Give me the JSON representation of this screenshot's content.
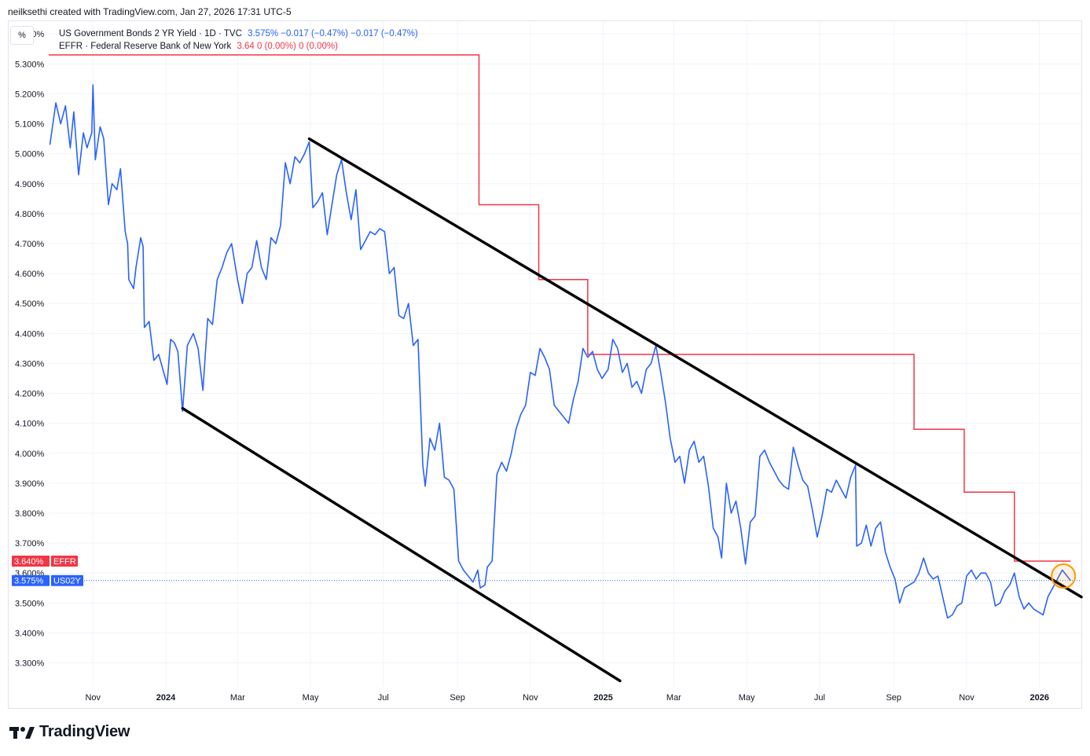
{
  "header": {
    "attribution": "neilksethi created with TradingView.com, Jan 27, 2026 17:31 UTC-5"
  },
  "toolbar": {
    "scale_button": "%"
  },
  "legend": {
    "series1_name": "US Government Bonds 2 YR Yield · 1D · TVC",
    "series1_values": "3.575%  −0.017 (−0.47%)  −0.017 (−0.47%)",
    "series2_name": "EFFR · Federal Reserve Bank of New York",
    "series2_values": "3.64  0 (0.00%)  0 (0.00%)"
  },
  "footer": {
    "brand": "TradingView"
  },
  "colors": {
    "us02y": "#2962ff",
    "effr": "#f23645",
    "trendline": "#000000",
    "highlight": "#ff9800"
  },
  "chart_data": {
    "type": "line",
    "y_unit": "%",
    "ylim": [
      3.22,
      5.44
    ],
    "y_ticks": [
      5.4,
      5.3,
      5.2,
      5.1,
      5.0,
      4.9,
      4.8,
      4.7,
      4.6,
      4.5,
      4.4,
      4.3,
      4.2,
      4.1,
      4.0,
      3.9,
      3.8,
      3.7,
      3.6,
      3.5,
      3.4,
      3.3
    ],
    "y_tick_labels": [
      "5.400%",
      "5.300%",
      "5.200%",
      "5.100%",
      "5.000%",
      "4.900%",
      "4.800%",
      "4.700%",
      "4.600%",
      "4.500%",
      "4.400%",
      "4.300%",
      "4.200%",
      "4.100%",
      "4.000%",
      "3.900%",
      "3.800%",
      "3.700%",
      "3.600%",
      "3.500%",
      "3.400%",
      "3.300%"
    ],
    "xlim": [
      "2023-09-25",
      "2026-02-05"
    ],
    "x_ticks": [
      {
        "date": "2023-11-01",
        "label": "Nov",
        "bold": false
      },
      {
        "date": "2024-01-01",
        "label": "2024",
        "bold": true
      },
      {
        "date": "2024-03-01",
        "label": "Mar",
        "bold": false
      },
      {
        "date": "2024-05-01",
        "label": "May",
        "bold": false
      },
      {
        "date": "2024-07-01",
        "label": "Jul",
        "bold": false
      },
      {
        "date": "2024-09-01",
        "label": "Sep",
        "bold": false
      },
      {
        "date": "2024-11-01",
        "label": "Nov",
        "bold": false
      },
      {
        "date": "2025-01-01",
        "label": "2025",
        "bold": true
      },
      {
        "date": "2025-03-01",
        "label": "Mar",
        "bold": false
      },
      {
        "date": "2025-05-01",
        "label": "May",
        "bold": false
      },
      {
        "date": "2025-07-01",
        "label": "Jul",
        "bold": false
      },
      {
        "date": "2025-09-01",
        "label": "Sep",
        "bold": false
      },
      {
        "date": "2025-11-01",
        "label": "Nov",
        "bold": false
      },
      {
        "date": "2026-01-01",
        "label": "2026",
        "bold": true
      }
    ],
    "series": [
      {
        "name": "US02Y",
        "points": [
          [
            "2023-09-26",
            5.03
          ],
          [
            "2023-10-01",
            5.17
          ],
          [
            "2023-10-05",
            5.1
          ],
          [
            "2023-10-09",
            5.16
          ],
          [
            "2023-10-13",
            5.02
          ],
          [
            "2023-10-16",
            5.14
          ],
          [
            "2023-10-20",
            4.93
          ],
          [
            "2023-10-24",
            5.07
          ],
          [
            "2023-10-27",
            5.02
          ],
          [
            "2023-10-31",
            5.07
          ],
          [
            "2023-11-01",
            5.23
          ],
          [
            "2023-11-03",
            4.98
          ],
          [
            "2023-11-07",
            5.09
          ],
          [
            "2023-11-10",
            5.05
          ],
          [
            "2023-11-14",
            4.83
          ],
          [
            "2023-11-17",
            4.9
          ],
          [
            "2023-11-21",
            4.88
          ],
          [
            "2023-11-24",
            4.95
          ],
          [
            "2023-11-28",
            4.74
          ],
          [
            "2023-11-30",
            4.7
          ],
          [
            "2023-12-01",
            4.58
          ],
          [
            "2023-12-05",
            4.55
          ],
          [
            "2023-12-07",
            4.62
          ],
          [
            "2023-12-11",
            4.72
          ],
          [
            "2023-12-13",
            4.69
          ],
          [
            "2023-12-14",
            4.42
          ],
          [
            "2023-12-18",
            4.44
          ],
          [
            "2023-12-22",
            4.31
          ],
          [
            "2023-12-26",
            4.33
          ],
          [
            "2024-01-02",
            4.23
          ],
          [
            "2024-01-05",
            4.38
          ],
          [
            "2024-01-08",
            4.37
          ],
          [
            "2024-01-11",
            4.34
          ],
          [
            "2024-01-15",
            4.14
          ],
          [
            "2024-01-19",
            4.36
          ],
          [
            "2024-01-24",
            4.4
          ],
          [
            "2024-01-28",
            4.35
          ],
          [
            "2024-02-01",
            4.21
          ],
          [
            "2024-02-05",
            4.45
          ],
          [
            "2024-02-09",
            4.43
          ],
          [
            "2024-02-13",
            4.58
          ],
          [
            "2024-02-17",
            4.62
          ],
          [
            "2024-02-21",
            4.67
          ],
          [
            "2024-02-25",
            4.7
          ],
          [
            "2024-03-01",
            4.58
          ],
          [
            "2024-03-05",
            4.5
          ],
          [
            "2024-03-09",
            4.6
          ],
          [
            "2024-03-13",
            4.62
          ],
          [
            "2024-03-17",
            4.71
          ],
          [
            "2024-03-21",
            4.62
          ],
          [
            "2024-03-25",
            4.58
          ],
          [
            "2024-03-29",
            4.72
          ],
          [
            "2024-04-02",
            4.7
          ],
          [
            "2024-04-06",
            4.76
          ],
          [
            "2024-04-10",
            4.97
          ],
          [
            "2024-04-14",
            4.9
          ],
          [
            "2024-04-18",
            4.99
          ],
          [
            "2024-04-22",
            4.97
          ],
          [
            "2024-04-26",
            5.0
          ],
          [
            "2024-04-30",
            5.04
          ],
          [
            "2024-05-03",
            4.82
          ],
          [
            "2024-05-07",
            4.84
          ],
          [
            "2024-05-11",
            4.87
          ],
          [
            "2024-05-15",
            4.73
          ],
          [
            "2024-05-19",
            4.83
          ],
          [
            "2024-05-23",
            4.93
          ],
          [
            "2024-05-27",
            4.98
          ],
          [
            "2024-05-31",
            4.87
          ],
          [
            "2024-06-04",
            4.78
          ],
          [
            "2024-06-08",
            4.88
          ],
          [
            "2024-06-12",
            4.68
          ],
          [
            "2024-06-16",
            4.71
          ],
          [
            "2024-06-20",
            4.74
          ],
          [
            "2024-06-24",
            4.73
          ],
          [
            "2024-06-28",
            4.75
          ],
          [
            "2024-07-02",
            4.74
          ],
          [
            "2024-07-06",
            4.6
          ],
          [
            "2024-07-10",
            4.62
          ],
          [
            "2024-07-14",
            4.46
          ],
          [
            "2024-07-18",
            4.45
          ],
          [
            "2024-07-22",
            4.5
          ],
          [
            "2024-07-26",
            4.36
          ],
          [
            "2024-07-30",
            4.38
          ],
          [
            "2024-08-03",
            3.96
          ],
          [
            "2024-08-05",
            3.89
          ],
          [
            "2024-08-09",
            4.05
          ],
          [
            "2024-08-13",
            4.01
          ],
          [
            "2024-08-17",
            4.1
          ],
          [
            "2024-08-21",
            3.92
          ],
          [
            "2024-08-25",
            3.91
          ],
          [
            "2024-08-29",
            3.88
          ],
          [
            "2024-09-02",
            3.64
          ],
          [
            "2024-09-06",
            3.61
          ],
          [
            "2024-09-10",
            3.59
          ],
          [
            "2024-09-14",
            3.57
          ],
          [
            "2024-09-18",
            3.61
          ],
          [
            "2024-09-20",
            3.55
          ],
          [
            "2024-09-24",
            3.56
          ],
          [
            "2024-09-26",
            3.62
          ],
          [
            "2024-09-30",
            3.64
          ],
          [
            "2024-10-04",
            3.93
          ],
          [
            "2024-10-08",
            3.97
          ],
          [
            "2024-10-12",
            3.94
          ],
          [
            "2024-10-16",
            4.0
          ],
          [
            "2024-10-20",
            4.08
          ],
          [
            "2024-10-24",
            4.13
          ],
          [
            "2024-10-28",
            4.16
          ],
          [
            "2024-11-01",
            4.27
          ],
          [
            "2024-11-05",
            4.26
          ],
          [
            "2024-11-09",
            4.35
          ],
          [
            "2024-11-13",
            4.32
          ],
          [
            "2024-11-17",
            4.28
          ],
          [
            "2024-11-21",
            4.16
          ],
          [
            "2024-11-25",
            4.14
          ],
          [
            "2024-11-29",
            4.12
          ],
          [
            "2024-12-03",
            4.1
          ],
          [
            "2024-12-07",
            4.18
          ],
          [
            "2024-12-11",
            4.24
          ],
          [
            "2024-12-15",
            4.35
          ],
          [
            "2024-12-19",
            4.32
          ],
          [
            "2024-12-23",
            4.34
          ],
          [
            "2024-12-27",
            4.28
          ],
          [
            "2024-12-31",
            4.25
          ],
          [
            "2025-01-05",
            4.28
          ],
          [
            "2025-01-09",
            4.38
          ],
          [
            "2025-01-13",
            4.35
          ],
          [
            "2025-01-17",
            4.27
          ],
          [
            "2025-01-21",
            4.3
          ],
          [
            "2025-01-25",
            4.22
          ],
          [
            "2025-01-29",
            4.24
          ],
          [
            "2025-02-02",
            4.2
          ],
          [
            "2025-02-06",
            4.28
          ],
          [
            "2025-02-10",
            4.3
          ],
          [
            "2025-02-14",
            4.36
          ],
          [
            "2025-02-18",
            4.27
          ],
          [
            "2025-02-22",
            4.17
          ],
          [
            "2025-02-26",
            4.05
          ],
          [
            "2025-03-02",
            3.97
          ],
          [
            "2025-03-06",
            3.99
          ],
          [
            "2025-03-10",
            3.9
          ],
          [
            "2025-03-14",
            4.01
          ],
          [
            "2025-03-18",
            4.04
          ],
          [
            "2025-03-22",
            3.97
          ],
          [
            "2025-03-26",
            3.99
          ],
          [
            "2025-03-30",
            3.89
          ],
          [
            "2025-04-03",
            3.75
          ],
          [
            "2025-04-07",
            3.72
          ],
          [
            "2025-04-10",
            3.65
          ],
          [
            "2025-04-14",
            3.9
          ],
          [
            "2025-04-18",
            3.8
          ],
          [
            "2025-04-22",
            3.84
          ],
          [
            "2025-04-26",
            3.75
          ],
          [
            "2025-04-30",
            3.63
          ],
          [
            "2025-05-04",
            3.77
          ],
          [
            "2025-05-08",
            3.79
          ],
          [
            "2025-05-12",
            3.99
          ],
          [
            "2025-05-16",
            4.01
          ],
          [
            "2025-05-20",
            3.97
          ],
          [
            "2025-05-24",
            3.94
          ],
          [
            "2025-05-28",
            3.91
          ],
          [
            "2025-06-01",
            3.89
          ],
          [
            "2025-06-05",
            3.88
          ],
          [
            "2025-06-09",
            4.02
          ],
          [
            "2025-06-13",
            3.96
          ],
          [
            "2025-06-17",
            3.91
          ],
          [
            "2025-06-21",
            3.89
          ],
          [
            "2025-06-25",
            3.81
          ],
          [
            "2025-06-29",
            3.72
          ],
          [
            "2025-07-03",
            3.79
          ],
          [
            "2025-07-07",
            3.88
          ],
          [
            "2025-07-11",
            3.87
          ],
          [
            "2025-07-15",
            3.91
          ],
          [
            "2025-07-19",
            3.88
          ],
          [
            "2025-07-23",
            3.85
          ],
          [
            "2025-07-27",
            3.92
          ],
          [
            "2025-07-31",
            3.96
          ],
          [
            "2025-08-01",
            3.69
          ],
          [
            "2025-08-05",
            3.7
          ],
          [
            "2025-08-09",
            3.76
          ],
          [
            "2025-08-13",
            3.69
          ],
          [
            "2025-08-17",
            3.75
          ],
          [
            "2025-08-21",
            3.77
          ],
          [
            "2025-08-25",
            3.67
          ],
          [
            "2025-08-29",
            3.62
          ],
          [
            "2025-09-02",
            3.58
          ],
          [
            "2025-09-06",
            3.5
          ],
          [
            "2025-09-10",
            3.55
          ],
          [
            "2025-09-14",
            3.56
          ],
          [
            "2025-09-18",
            3.57
          ],
          [
            "2025-09-22",
            3.6
          ],
          [
            "2025-09-26",
            3.65
          ],
          [
            "2025-09-30",
            3.6
          ],
          [
            "2025-10-04",
            3.58
          ],
          [
            "2025-10-08",
            3.59
          ],
          [
            "2025-10-12",
            3.52
          ],
          [
            "2025-10-16",
            3.45
          ],
          [
            "2025-10-20",
            3.46
          ],
          [
            "2025-10-24",
            3.49
          ],
          [
            "2025-10-28",
            3.5
          ],
          [
            "2025-11-01",
            3.59
          ],
          [
            "2025-11-05",
            3.61
          ],
          [
            "2025-11-09",
            3.58
          ],
          [
            "2025-11-13",
            3.6
          ],
          [
            "2025-11-17",
            3.6
          ],
          [
            "2025-11-21",
            3.57
          ],
          [
            "2025-11-25",
            3.49
          ],
          [
            "2025-11-29",
            3.5
          ],
          [
            "2025-12-03",
            3.54
          ],
          [
            "2025-12-07",
            3.56
          ],
          [
            "2025-12-11",
            3.6
          ],
          [
            "2025-12-15",
            3.52
          ],
          [
            "2025-12-19",
            3.48
          ],
          [
            "2025-12-23",
            3.5
          ],
          [
            "2025-12-27",
            3.48
          ],
          [
            "2025-12-31",
            3.47
          ],
          [
            "2026-01-04",
            3.46
          ],
          [
            "2026-01-08",
            3.52
          ],
          [
            "2026-01-12",
            3.55
          ],
          [
            "2026-01-16",
            3.58
          ],
          [
            "2026-01-20",
            3.61
          ],
          [
            "2026-01-24",
            3.59
          ],
          [
            "2026-01-27",
            3.575
          ]
        ]
      },
      {
        "name": "EFFR",
        "steps": [
          [
            "2023-09-25",
            5.33
          ],
          [
            "2024-09-19",
            4.83
          ],
          [
            "2024-11-08",
            4.58
          ],
          [
            "2024-12-19",
            4.33
          ],
          [
            "2025-09-18",
            4.08
          ],
          [
            "2025-10-30",
            3.87
          ],
          [
            "2025-12-11",
            3.64
          ],
          [
            "2026-01-27",
            3.64
          ]
        ]
      }
    ],
    "trendlines": [
      {
        "from": [
          "2024-04-30",
          5.05
        ],
        "to": [
          "2026-02-05",
          3.52
        ]
      },
      {
        "from": [
          "2024-01-15",
          4.15
        ],
        "to": [
          "2025-01-15",
          3.24
        ]
      }
    ],
    "last_value_badges": [
      {
        "value": "3.640%",
        "series": "EFFR"
      },
      {
        "value": "3.575%",
        "series": "US02Y"
      }
    ],
    "highlight_circle": {
      "date": "2026-01-21",
      "value": 3.59
    }
  }
}
